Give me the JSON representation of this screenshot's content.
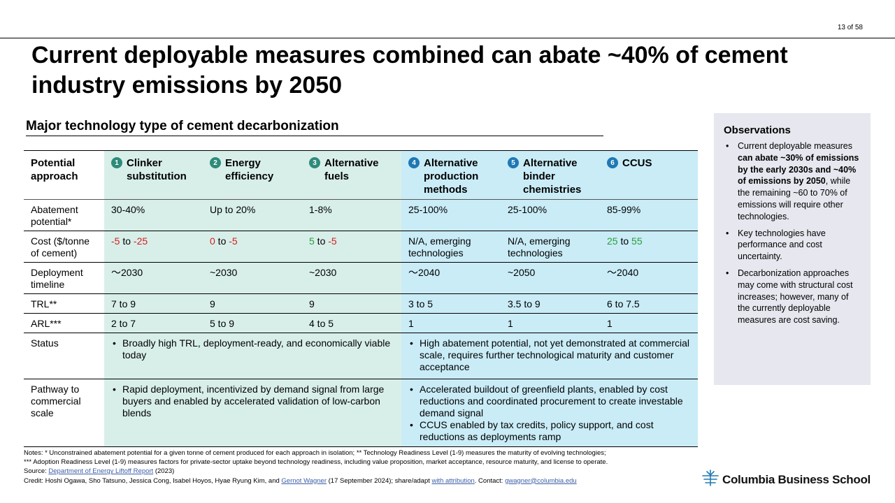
{
  "page_number": "13 of 58",
  "title": "Current deployable measures combined can abate ~40% of cement industry emissions by 2050",
  "section_heading": "Major technology type of cement decarbonization",
  "table": {
    "corner": "Potential approach",
    "columns": [
      {
        "num": "1",
        "label": "Clinker substitution"
      },
      {
        "num": "2",
        "label": "Energy efficiency"
      },
      {
        "num": "3",
        "label": "Alternative fuels"
      },
      {
        "num": "4",
        "label": "Alternative production methods"
      },
      {
        "num": "5",
        "label": "Alternative binder chemistries"
      },
      {
        "num": "6",
        "label": "CCUS"
      }
    ],
    "rows": {
      "abatement": {
        "label": "Abatement potential*",
        "values": [
          "30-40%",
          "Up to 20%",
          "1-8%",
          "25-100%",
          "25-100%",
          "85-99%"
        ]
      },
      "cost": {
        "label": "Cost ($/tonne of cement)",
        "c1": {
          "a": "-5",
          "to": " to ",
          "b": "-25"
        },
        "c2": {
          "a": "0",
          "to": " to ",
          "b": "-5"
        },
        "c3": {
          "a": "5",
          "to": " to ",
          "b": "-5"
        },
        "c4": "N/A, emerging technologies",
        "c5": "N/A, emerging technologies",
        "c6": {
          "a": "25",
          "to": " to ",
          "b": "55"
        }
      },
      "deployment": {
        "label": "Deployment timeline",
        "values": [
          "〜2030",
          "~2030",
          "~2030",
          "〜2040",
          "~2050",
          "〜2040"
        ]
      },
      "trl": {
        "label": "TRL**",
        "values": [
          "7 to 9",
          "9",
          "9",
          "3 to 5",
          "3.5 to 9",
          "6 to 7.5"
        ]
      },
      "arl": {
        "label": "ARL***",
        "values": [
          "2 to 7",
          "5 to 9",
          "4 to 5",
          "1",
          "1",
          "1"
        ]
      },
      "status": {
        "label": "Status",
        "left": "Broadly high TRL, deployment-ready, and economically viable today",
        "right": "High abatement potential, not yet demonstrated at commercial scale, requires further technological maturity and customer acceptance"
      },
      "pathway": {
        "label": "Pathway to commercial scale",
        "left": "Rapid deployment, incentivized by demand signal from large buyers and enabled by accelerated validation of low-carbon blends",
        "right1": "Accelerated buildout of greenfield plants, enabled by cost reductions and coordinated procurement to create investable demand signal",
        "right2": "CCUS enabled by tax credits, policy support, and cost reductions as deployments ramp"
      }
    }
  },
  "observations": {
    "heading": "Observations",
    "b1_pre": "Current deployable measures ",
    "b1_bold1": "can abate ~30% of emissions by the early 2030s and ~40% of emissions by 2050",
    "b1_post": ", while the remaining ~60 to 70% of emissions will require other technologies.",
    "b2": "Key technologies have performance and cost uncertainty.",
    "b3": "Decarbonization approaches may come with structural cost increases; however, many of the currently deployable measures are cost saving."
  },
  "notes": {
    "line1": "Notes: * Unconstrained abatement potential for a given tonne of cement produced for each approach in isolation; ** Technology Readiness Level (1-9) measures the maturity of evolving technologies;",
    "line2": "*** Adoption Readiness Level (1-9) measures factors for private-sector uptake beyond technology readiness, including value proposition, market acceptance, resource maturity, and license to operate.",
    "source_pre": "Source: ",
    "source_link": "Department of Energy Liftoff Report",
    "source_post": " (2023)",
    "credit_pre": "Credit: Hoshi Ogawa, Sho Tatsuno, Jessica Cong, Isabel Hoyos, Hyae Ryung Kim, and ",
    "credit_link": "Gernot Wagner",
    "credit_mid": " (17 September 2024); share/adapt ",
    "attr_link": "with attribution",
    "contact_pre": ". Contact: ",
    "contact_link": "gwagner@columbia.edu"
  },
  "logo": {
    "text": "Columbia Business School",
    "icon": "columbia-crown-icon"
  },
  "colors": {
    "green_bg": "#d8efe9",
    "blue_bg": "#c9ecf7",
    "negative": "#d21f1f",
    "positive": "#2a9d3a",
    "obs_bg": "#e6e7ef"
  }
}
